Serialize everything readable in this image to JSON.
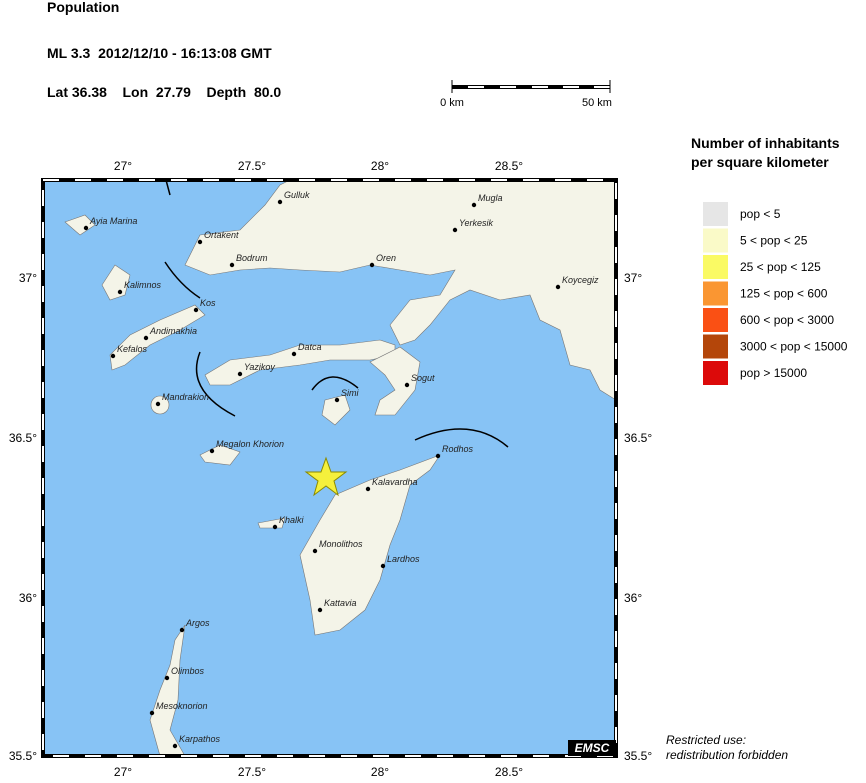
{
  "header": {
    "title": "Population",
    "event": "ML 3.3  2012/12/10 - 16:13:08 GMT",
    "location": "Lat 36.38    Lon  27.79    Depth  80.0"
  },
  "scale": {
    "start": "0 km",
    "end": "50 km"
  },
  "legend": {
    "title_lines": [
      "Number of inhabitants",
      "per square kilometer"
    ],
    "items": [
      {
        "label": "pop < 5",
        "color": "#e6e6e6"
      },
      {
        "label": "5 < pop < 25",
        "color": "#fafac8"
      },
      {
        "label": "25 < pop < 125",
        "color": "#fafa64"
      },
      {
        "label": "125 < pop < 600",
        "color": "#fa9632"
      },
      {
        "label": "600 < pop < 3000",
        "color": "#fa5014"
      },
      {
        "label": "3000 < pop < 15000",
        "color": "#b4460a"
      },
      {
        "label": "pop > 15000",
        "color": "#dc0a0a"
      }
    ]
  },
  "map": {
    "lon_labels": [
      "27°",
      "27.5°",
      "28°",
      "28.5°"
    ],
    "lat_labels": [
      "37°",
      "36.5°",
      "36°",
      "35.5°"
    ],
    "cities": [
      "Ayia Marina",
      "Gulluk",
      "Ortakent",
      "Bodrum",
      "Kalimnos",
      "Kos",
      "Andimakhia",
      "Kefalos",
      "Datca",
      "Yazikoy",
      "Mandrakion",
      "Simi",
      "Megalon Khorion",
      "Oren",
      "Mugla",
      "Yerkesik",
      "Koycegiz",
      "Sogut",
      "Rodhos",
      "Kalavardha",
      "Khalki",
      "Monolithos",
      "Lardhos",
      "Kattavia",
      "Argos",
      "Olimbos",
      "Mesoknorion",
      "Karpathos"
    ],
    "badge": "EMSC"
  },
  "footer": {
    "lines": [
      "Restricted use:",
      "redistribution forbidden"
    ]
  }
}
